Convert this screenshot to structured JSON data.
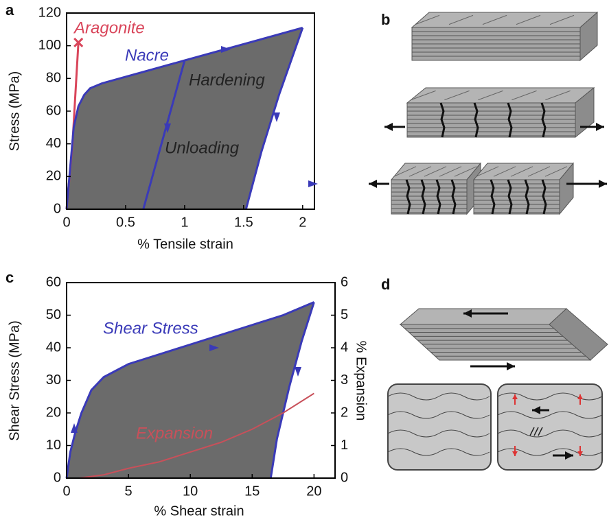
{
  "chart_data": [
    {
      "type": "line",
      "panel": "a",
      "xlabel": "% Tensile strain",
      "ylabel": "Stress (MPa)",
      "xlim": [
        0,
        2.1
      ],
      "ylim": [
        0,
        120
      ],
      "xticks": [
        0,
        0.5,
        1,
        1.5,
        2
      ],
      "yticks": [
        0,
        20,
        40,
        60,
        80,
        100,
        120
      ],
      "fill_color": "#6b6b6b",
      "series": [
        {
          "name": "Aragonite",
          "color": "#d9455a",
          "x": [
            0,
            0.05,
            0.1
          ],
          "values": [
            0,
            40,
            102
          ]
        },
        {
          "name": "Nacre",
          "color": "#3a3ab8",
          "x": [
            0,
            0.03,
            0.06,
            0.1,
            0.15,
            0.2,
            0.3,
            0.5,
            1,
            1.5,
            2
          ],
          "values": [
            0,
            25,
            50,
            63,
            70,
            74,
            77,
            81,
            91,
            101,
            111
          ]
        },
        {
          "color": "#3a3ab8",
          "x": [
            1,
            0.65
          ],
          "values": [
            91,
            0
          ]
        },
        {
          "color": "#3a3ab8",
          "x": [
            2,
            1.8,
            1.65,
            1.52
          ],
          "values": [
            111,
            70,
            35,
            0
          ]
        }
      ],
      "annotations": [
        {
          "text": "Hardening",
          "color": "#222222"
        },
        {
          "text": "Unloading",
          "color": "#222222"
        }
      ]
    },
    {
      "type": "line",
      "panel": "c",
      "xlabel": "% Shear strain",
      "ylabel": "Shear Stress (MPa)",
      "y2label": "% Expansion",
      "xlim": [
        0,
        21.7
      ],
      "ylim": [
        0,
        60
      ],
      "y2lim": [
        0,
        6
      ],
      "xticks": [
        0,
        5,
        10,
        15,
        20
      ],
      "yticks": [
        0,
        10,
        20,
        30,
        40,
        50,
        60
      ],
      "y2ticks": [
        0,
        1,
        2,
        3,
        4,
        5,
        6
      ],
      "fill_color": "#6b6b6b",
      "series": [
        {
          "name": "Shear Stress",
          "color": "#3a3ab8",
          "x": [
            0,
            0.3,
            0.7,
            1.2,
            2,
            3,
            4,
            5,
            7.5,
            10,
            12.5,
            15,
            17.5,
            20
          ],
          "values": [
            0,
            8,
            14,
            20,
            27,
            31,
            33,
            35,
            38,
            41,
            44,
            47,
            50,
            54
          ]
        },
        {
          "color": "#3a3ab8",
          "x": [
            20,
            19,
            18,
            17,
            16.5
          ],
          "values": [
            54,
            42,
            28,
            12,
            0
          ]
        },
        {
          "name": "Expansion",
          "color": "#c8505a",
          "axis": "y2",
          "x": [
            1,
            3,
            5,
            7.5,
            10,
            12.5,
            15,
            17.5,
            20
          ],
          "values": [
            0,
            0.1,
            0.3,
            0.5,
            0.8,
            1.1,
            1.5,
            2,
            2.6
          ]
        }
      ],
      "annotations": []
    }
  ],
  "diagrams": [
    {
      "panel": "b"
    },
    {
      "panel": "d"
    }
  ]
}
